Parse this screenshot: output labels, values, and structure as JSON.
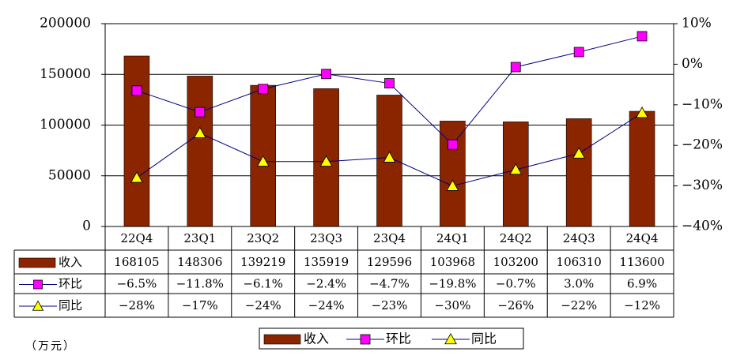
{
  "chart_data": {
    "type": "bar",
    "categories": [
      "22Q4",
      "23Q1",
      "23Q2",
      "23Q3",
      "23Q4",
      "24Q1",
      "24Q2",
      "24Q3",
      "24Q4"
    ],
    "series": [
      {
        "name": "收入",
        "kind": "bar",
        "axis": "left",
        "values": [
          168105,
          148306,
          139219,
          135919,
          129596,
          103968,
          103200,
          106310,
          113600
        ],
        "labels": [
          "168105",
          "148306",
          "139219",
          "135919",
          "129596",
          "103968",
          "103200",
          "106310",
          "113600"
        ],
        "color": "#8B2500"
      },
      {
        "name": "环比",
        "kind": "line",
        "marker": "square",
        "axis": "right",
        "values": [
          -6.5,
          -11.8,
          -6.1,
          -2.4,
          -4.7,
          -19.8,
          -0.7,
          3.0,
          6.9
        ],
        "labels": [
          "-6.5%",
          "-11.8%",
          "-6.1%",
          "-2.4%",
          "-4.7%",
          "-19.8%",
          "-0.7%",
          "3.0%",
          "6.9%"
        ],
        "color": "#FF00FF",
        "line_color": "#000080"
      },
      {
        "name": "同比",
        "kind": "line",
        "marker": "triangle",
        "axis": "right",
        "values": [
          -28,
          -17,
          -24,
          -24,
          -23,
          -30,
          -26,
          -22,
          -12
        ],
        "labels": [
          "-28%",
          "-17%",
          "-24%",
          "-24%",
          "-23%",
          "-30%",
          "-26%",
          "-22%",
          "-12%"
        ],
        "color": "#FFFF00",
        "line_color": "#000080"
      }
    ],
    "y_left": {
      "lim": [
        0,
        200000
      ],
      "ticks": [
        "0",
        "50000",
        "100000",
        "150000",
        "200000"
      ]
    },
    "y_right": {
      "lim": [
        -40,
        10
      ],
      "ticks": [
        "-40%",
        "-30%",
        "-20%",
        "-10%",
        "0%",
        "10%"
      ]
    },
    "grid": true,
    "data_table": true,
    "legend_position": "bottom",
    "unit_note": "（万元）"
  }
}
